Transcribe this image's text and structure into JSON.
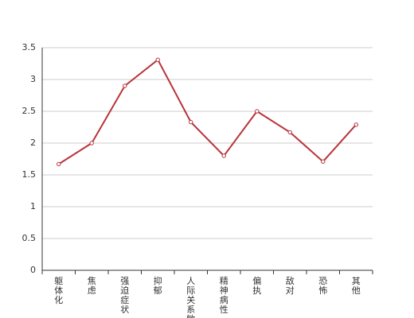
{
  "chart_data": {
    "type": "line",
    "categories": [
      "躯体化",
      "焦虑",
      "强迫症状",
      "抑郁",
      "人际关系敏感",
      "精神病性",
      "偏执",
      "敌对",
      "恐怖",
      "其他"
    ],
    "series": [
      {
        "name": null,
        "color": "#b8343a",
        "values": [
          1.67,
          2.0,
          2.9,
          3.31,
          2.33,
          1.8,
          2.5,
          2.17,
          1.71,
          2.29
        ]
      }
    ],
    "ylim": [
      0,
      3.5
    ],
    "yticks": [
      0,
      0.5,
      1,
      1.5,
      2,
      2.5,
      3,
      3.5
    ],
    "grid": true
  }
}
